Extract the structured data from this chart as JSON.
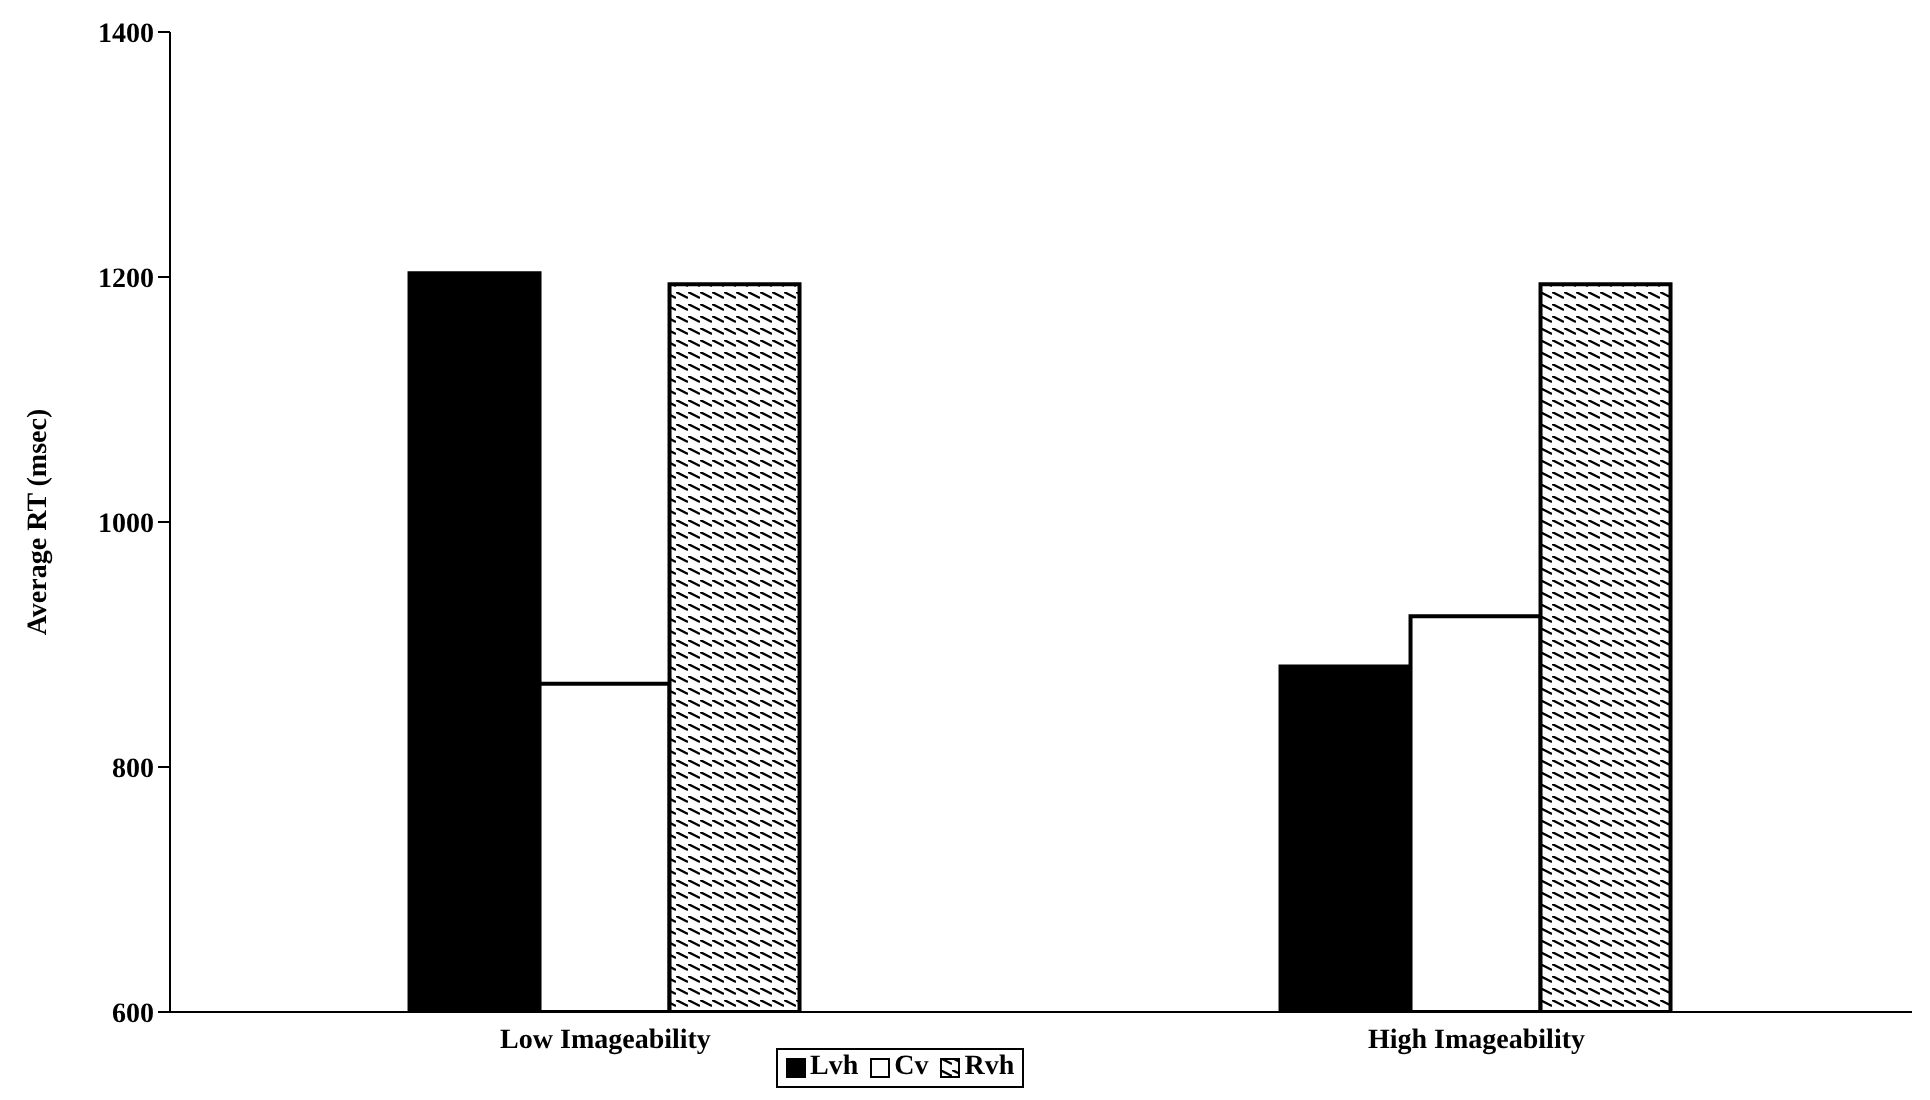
{
  "chart_data": {
    "type": "bar",
    "ylabel": "Average RT (msec)",
    "categories": [
      "Low Imageability",
      "High Imageability"
    ],
    "series": [
      {
        "name": "Lvh",
        "color": "#000000",
        "values": [
          1203,
          882
        ]
      },
      {
        "name": "Cv",
        "color": "#ffffff",
        "values": [
          868,
          923
        ]
      },
      {
        "name": "Rvh",
        "color": "#000000",
        "values": [
          1194,
          1194
        ]
      }
    ],
    "ylim": [
      600,
      1400
    ],
    "yticks": [
      600,
      800,
      1000,
      1200,
      1400
    ],
    "grid": false,
    "legend": "bottom"
  }
}
